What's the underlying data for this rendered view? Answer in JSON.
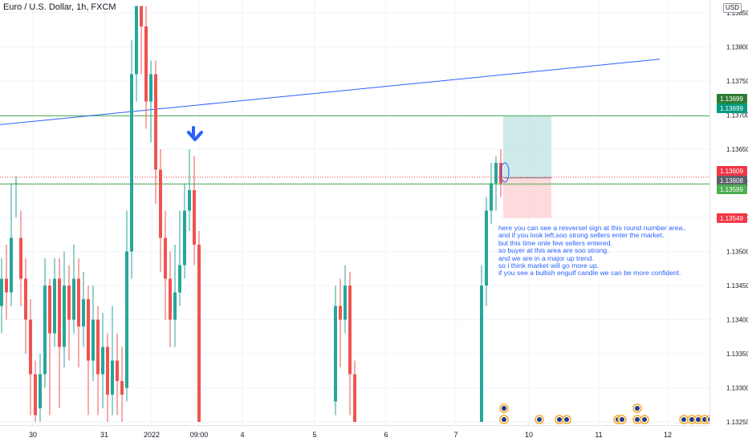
{
  "title": "Euro / U.S. Dollar, 1h, FXCM",
  "currency": "USD",
  "price_axis": {
    "ticks": [
      "1.13850",
      "1.13800",
      "1.13750",
      "1.13700",
      "1.13650",
      "1.13600",
      "1.13550",
      "1.13500",
      "1.13450",
      "1.13400",
      "1.13350",
      "1.13300",
      "1.13250"
    ]
  },
  "price_labels": [
    {
      "text": "1.13699",
      "price": 1.13699,
      "color": "#2e7d32",
      "bg": "#2e7d32"
    },
    {
      "text": "1.13699",
      "price": 1.13699,
      "color": "#089981",
      "bg": "#089981"
    },
    {
      "text": "1.13609",
      "price": 1.13609,
      "color": "#f23645",
      "bg": "#f23645"
    },
    {
      "text": "1.13608",
      "price": 1.13608,
      "color": "#5d606b",
      "bg": "#5d606b"
    },
    {
      "text": "1.13599",
      "price": 1.13599,
      "color": "#4caf50",
      "bg": "#4caf50"
    },
    {
      "text": "1.13549",
      "price": 1.13549,
      "color": "#f23645",
      "bg": "#f23645"
    }
  ],
  "time_axis": {
    "labels": [
      "30",
      "31",
      "2022",
      "09:00",
      "4",
      "5",
      "6",
      "7",
      "10",
      "11",
      "12"
    ]
  },
  "annotation": [
    "here you can see a resversel sign at this round number area..",
    "and if you look left,soo strong sellers enter the market.",
    "but this time onle few sellers entered.",
    "so buyer at this area are soo strong.",
    "and we are in a major up trend.",
    "so i think market will go more up.",
    "if you see a bullish engulf candle we can be more confident."
  ],
  "colors": {
    "up": "#26a69a",
    "down": "#ef5350",
    "trendline": "#2962ff",
    "level": "#4caf50",
    "target_zone": "#b2dfdb",
    "stop_zone": "#ffcdd2",
    "arrow": "#2962ff"
  },
  "chart_data": {
    "type": "candlestick",
    "symbol": "Euro / U.S. Dollar",
    "interval": "1h",
    "source": "FXCM",
    "y_range": [
      1.1325,
      1.1386
    ],
    "x_labels": [
      "30",
      "31",
      "2022",
      "09:00",
      "4",
      "5",
      "6",
      "7",
      "10",
      "11",
      "12"
    ],
    "horizontal_levels": [
      1.13699,
      1.13599
    ],
    "trendline": {
      "start": [
        0,
        1.13686
      ],
      "end": [
        822,
        1.13782
      ]
    },
    "position": {
      "entry": 1.13608,
      "target": 1.13699,
      "stop": 1.13549
    },
    "candles_sketch": [
      {
        "x": 2,
        "o": 1.1342,
        "c": 1.1346,
        "h": 1.1349,
        "l": 1.1338
      },
      {
        "x": 8,
        "o": 1.1346,
        "c": 1.1344,
        "h": 1.1351,
        "l": 1.134
      },
      {
        "x": 14,
        "o": 1.1344,
        "c": 1.1352,
        "h": 1.136,
        "l": 1.1342
      },
      {
        "x": 20,
        "o": 1.136,
        "c": 1.136,
        "h": 1.1361,
        "l": 1.1355
      },
      {
        "x": 26,
        "o": 1.1352,
        "c": 1.1346,
        "h": 1.1356,
        "l": 1.1342
      },
      {
        "x": 32,
        "o": 1.1346,
        "c": 1.134,
        "h": 1.1349,
        "l": 1.1335
      },
      {
        "x": 38,
        "o": 1.134,
        "c": 1.1332,
        "h": 1.1343,
        "l": 1.1326
      },
      {
        "x": 44,
        "o": 1.1332,
        "c": 1.1326,
        "h": 1.1334,
        "l": 1.1325
      },
      {
        "x": 50,
        "o": 1.1327,
        "c": 1.1332,
        "h": 1.1335,
        "l": 1.1325
      },
      {
        "x": 56,
        "o": 1.1332,
        "c": 1.1345,
        "h": 1.1349,
        "l": 1.133
      },
      {
        "x": 62,
        "o": 1.1345,
        "c": 1.1338,
        "h": 1.1346,
        "l": 1.1326
      },
      {
        "x": 68,
        "o": 1.1338,
        "c": 1.1346,
        "h": 1.1349,
        "l": 1.1336
      },
      {
        "x": 74,
        "o": 1.1346,
        "c": 1.1336,
        "h": 1.1349,
        "l": 1.1327
      },
      {
        "x": 80,
        "o": 1.1336,
        "c": 1.1345,
        "h": 1.135,
        "l": 1.1333
      },
      {
        "x": 86,
        "o": 1.1345,
        "c": 1.134,
        "h": 1.1348,
        "l": 1.1334
      },
      {
        "x": 92,
        "o": 1.134,
        "c": 1.1346,
        "h": 1.1351,
        "l": 1.1338
      },
      {
        "x": 98,
        "o": 1.1346,
        "c": 1.1339,
        "h": 1.1349,
        "l": 1.1333
      },
      {
        "x": 104,
        "o": 1.1339,
        "c": 1.1343,
        "h": 1.1347,
        "l": 1.1336
      },
      {
        "x": 110,
        "o": 1.1343,
        "c": 1.1334,
        "h": 1.1345,
        "l": 1.1326
      },
      {
        "x": 116,
        "o": 1.1334,
        "c": 1.134,
        "h": 1.1345,
        "l": 1.1331
      },
      {
        "x": 122,
        "o": 1.134,
        "c": 1.1332,
        "h": 1.1342,
        "l": 1.1326
      },
      {
        "x": 128,
        "o": 1.1332,
        "c": 1.1336,
        "h": 1.1341,
        "l": 1.1327
      },
      {
        "x": 134,
        "o": 1.1336,
        "c": 1.1329,
        "h": 1.1338,
        "l": 1.1325
      },
      {
        "x": 140,
        "o": 1.1329,
        "c": 1.1334,
        "h": 1.1342,
        "l": 1.1326
      },
      {
        "x": 146,
        "o": 1.1334,
        "c": 1.1331,
        "h": 1.1338,
        "l": 1.1326
      },
      {
        "x": 152,
        "o": 1.1331,
        "c": 1.1329,
        "h": 1.1336,
        "l": 1.1325
      },
      {
        "x": 158,
        "o": 1.133,
        "c": 1.135,
        "h": 1.1356,
        "l": 1.1328
      },
      {
        "x": 164,
        "o": 1.135,
        "c": 1.1376,
        "h": 1.1381,
        "l": 1.1346
      },
      {
        "x": 170,
        "o": 1.1376,
        "c": 1.1386,
        "h": 1.1386,
        "l": 1.1372
      },
      {
        "x": 176,
        "o": 1.1386,
        "c": 1.1383,
        "h": 1.1386,
        "l": 1.1376
      },
      {
        "x": 182,
        "o": 1.1383,
        "c": 1.1372,
        "h": 1.1386,
        "l": 1.1368
      },
      {
        "x": 188,
        "o": 1.1372,
        "c": 1.1376,
        "h": 1.1378,
        "l": 1.1366
      },
      {
        "x": 194,
        "o": 1.1376,
        "c": 1.1362,
        "h": 1.1378,
        "l": 1.1357
      },
      {
        "x": 200,
        "o": 1.1362,
        "c": 1.1352,
        "h": 1.1365,
        "l": 1.1347
      },
      {
        "x": 206,
        "o": 1.1352,
        "c": 1.1346,
        "h": 1.1356,
        "l": 1.134
      },
      {
        "x": 212,
        "o": 1.1346,
        "c": 1.134,
        "h": 1.135,
        "l": 1.1336
      },
      {
        "x": 218,
        "o": 1.134,
        "c": 1.1344,
        "h": 1.1351,
        "l": 1.1336
      },
      {
        "x": 224,
        "o": 1.1344,
        "c": 1.1348,
        "h": 1.1356,
        "l": 1.1342
      },
      {
        "x": 230,
        "o": 1.1348,
        "c": 1.1356,
        "h": 1.136,
        "l": 1.1346
      },
      {
        "x": 236,
        "o": 1.1356,
        "c": 1.1359,
        "h": 1.1365,
        "l": 1.1353
      },
      {
        "x": 242,
        "o": 1.1359,
        "c": 1.1351,
        "h": 1.1364,
        "l": 1.1348
      },
      {
        "x": 248,
        "o": 1.1351,
        "c": 1.1325,
        "h": 1.1353,
        "l": 1.1325
      },
      {
        "x": 418,
        "o": 1.1328,
        "c": 1.1342,
        "h": 1.1345,
        "l": 1.1326
      },
      {
        "x": 424,
        "o": 1.1342,
        "c": 1.134,
        "h": 1.1346,
        "l": 1.1333
      },
      {
        "x": 430,
        "o": 1.134,
        "c": 1.1345,
        "h": 1.1348,
        "l": 1.1338
      },
      {
        "x": 436,
        "o": 1.1345,
        "c": 1.1332,
        "h": 1.1347,
        "l": 1.1326
      },
      {
        "x": 442,
        "o": 1.1332,
        "c": 1.1325,
        "h": 1.1334,
        "l": 1.1325
      },
      {
        "x": 600,
        "o": 1.1325,
        "c": 1.1345,
        "h": 1.1348,
        "l": 1.1325
      },
      {
        "x": 606,
        "o": 1.1345,
        "c": 1.1356,
        "h": 1.1358,
        "l": 1.1342
      },
      {
        "x": 612,
        "o": 1.1356,
        "c": 1.136,
        "h": 1.1363,
        "l": 1.1354
      },
      {
        "x": 618,
        "o": 1.136,
        "c": 1.1363,
        "h": 1.1364,
        "l": 1.1356
      },
      {
        "x": 624,
        "o": 1.1363,
        "c": 1.136,
        "h": 1.1365,
        "l": 1.1358
      }
    ]
  }
}
